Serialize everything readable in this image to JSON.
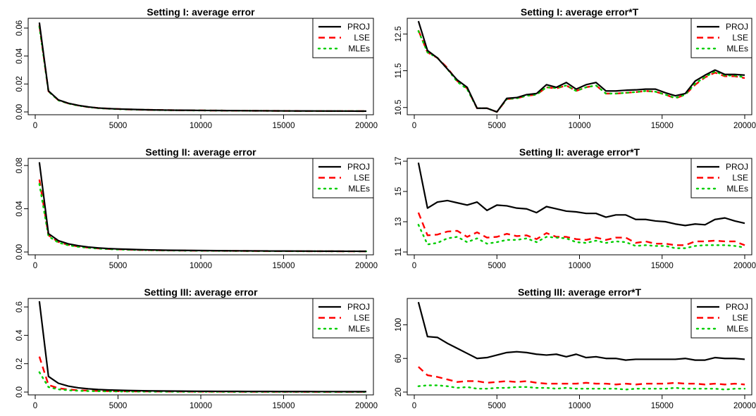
{
  "figure": {
    "background": "#ffffff"
  },
  "legend": {
    "entries": [
      {
        "label": "PROJ",
        "color": "#000000",
        "dash": "solid"
      },
      {
        "label": "LSE",
        "color": "#ff0000",
        "dash": "dashed"
      },
      {
        "label": "MLEs",
        "color": "#00cd00",
        "dash": "dotted"
      }
    ],
    "placement": "top-right"
  },
  "chart_data": [
    {
      "type": "line",
      "title": "Setting I: average error",
      "xlim": [
        0,
        20000
      ],
      "ylim": [
        0,
        0.065
      ],
      "xticks": [
        0,
        5000,
        10000,
        15000,
        20000
      ],
      "yticks": [
        0.0,
        0.02,
        0.04,
        0.06
      ],
      "ytick_labels": [
        "0.00",
        "0.02",
        "0.04",
        "0.06"
      ],
      "x": [
        250,
        800,
        1400,
        2000,
        2600,
        3200,
        3800,
        4400,
        5000,
        5600,
        6200,
        6800,
        7400,
        8000,
        8600,
        9200,
        9800,
        10400,
        11000,
        11600,
        12200,
        12800,
        13400,
        14000,
        14600,
        15200,
        15800,
        16400,
        17000,
        17600,
        18200,
        18800,
        19400,
        20000
      ],
      "series": [
        {
          "name": "PROJ",
          "values": [
            0.064,
            0.015,
            0.0086,
            0.0062,
            0.0047,
            0.0036,
            0.0028,
            0.0024,
            0.0021,
            0.0019,
            0.0017,
            0.0015,
            0.0014,
            0.0013,
            0.0012,
            0.0012,
            0.0011,
            0.00105,
            0.001,
            0.00095,
            0.0009,
            0.00085,
            0.00082,
            0.00078,
            0.00075,
            0.00072,
            0.0007,
            0.00068,
            0.00066,
            0.00064,
            0.00062,
            0.0006,
            0.00058,
            0.00057
          ]
        },
        {
          "name": "LSE",
          "values": [
            0.062,
            0.0148,
            0.0084,
            0.0061,
            0.0046,
            0.0035,
            0.0028,
            0.0024,
            0.0021,
            0.0018,
            0.0016,
            0.0015,
            0.0014,
            0.0013,
            0.0012,
            0.00115,
            0.0011,
            0.001,
            0.00098,
            0.00093,
            0.00088,
            0.00084,
            0.0008,
            0.00077,
            0.00074,
            0.00071,
            0.00069,
            0.00067,
            0.00065,
            0.00063,
            0.00061,
            0.00059,
            0.00057,
            0.00056
          ]
        },
        {
          "name": "MLEs",
          "values": [
            0.061,
            0.0146,
            0.0083,
            0.006,
            0.0045,
            0.0035,
            0.0027,
            0.0023,
            0.002,
            0.0018,
            0.0016,
            0.0015,
            0.0013,
            0.0012,
            0.0012,
            0.0011,
            0.00105,
            0.001,
            0.00096,
            0.00092,
            0.00087,
            0.00083,
            0.0008,
            0.00076,
            0.00073,
            0.0007,
            0.00068,
            0.00066,
            0.00064,
            0.00062,
            0.0006,
            0.00058,
            0.00057,
            0.00055
          ]
        }
      ]
    },
    {
      "type": "line",
      "title": "Setting I: average error*T",
      "xlim": [
        0,
        20000
      ],
      "ylim": [
        10.38,
        12.85
      ],
      "xticks": [
        0,
        5000,
        10000,
        15000,
        20000
      ],
      "yticks": [
        10.5,
        11.5,
        12.5
      ],
      "ytick_labels": [
        "10.5",
        "11.5",
        "12.5"
      ],
      "x": [
        250,
        800,
        1400,
        2000,
        2600,
        3200,
        3800,
        4400,
        5000,
        5600,
        6200,
        6800,
        7400,
        8000,
        8600,
        9200,
        9800,
        10400,
        11000,
        11600,
        12200,
        12800,
        13400,
        14000,
        14600,
        15200,
        15800,
        16400,
        17000,
        17600,
        18200,
        18800,
        19400,
        20000
      ],
      "series": [
        {
          "name": "PROJ",
          "values": [
            12.85,
            12.05,
            11.85,
            11.55,
            11.25,
            11.05,
            10.48,
            10.48,
            10.38,
            10.75,
            10.77,
            10.85,
            10.88,
            11.12,
            11.05,
            11.18,
            11.0,
            11.12,
            11.18,
            10.95,
            10.95,
            10.97,
            10.98,
            11.0,
            11.0,
            10.9,
            10.82,
            10.88,
            11.22,
            11.38,
            11.52,
            11.4,
            11.4,
            11.38
          ]
        },
        {
          "name": "LSE",
          "values": [
            12.6,
            12.0,
            11.85,
            11.58,
            11.22,
            11.02,
            10.48,
            10.48,
            10.38,
            10.73,
            10.75,
            10.82,
            10.85,
            11.05,
            11.02,
            11.1,
            10.95,
            11.05,
            11.1,
            10.88,
            10.88,
            10.9,
            10.92,
            10.95,
            10.93,
            10.85,
            10.75,
            10.85,
            11.12,
            11.32,
            11.45,
            11.35,
            11.35,
            11.3
          ]
        },
        {
          "name": "MLEs",
          "values": [
            12.58,
            12.0,
            11.85,
            11.55,
            11.2,
            11.0,
            10.48,
            10.48,
            10.38,
            10.73,
            10.75,
            10.82,
            10.85,
            11.05,
            11.03,
            11.1,
            10.95,
            11.05,
            11.1,
            10.88,
            10.88,
            10.9,
            10.92,
            10.95,
            10.93,
            10.85,
            10.76,
            10.85,
            11.15,
            11.33,
            11.48,
            11.37,
            11.37,
            11.32
          ]
        }
      ]
    },
    {
      "type": "line",
      "title": "Setting II: average error",
      "xlim": [
        0,
        20000
      ],
      "ylim": [
        0,
        0.084
      ],
      "xticks": [
        0,
        5000,
        10000,
        15000,
        20000
      ],
      "yticks": [
        0.0,
        0.04,
        0.08
      ],
      "ytick_labels": [
        "0.00",
        "0.04",
        "0.08"
      ],
      "x": [
        250,
        800,
        1400,
        2000,
        2600,
        3200,
        3800,
        4400,
        5000,
        5600,
        6200,
        6800,
        7400,
        8000,
        8600,
        9200,
        9800,
        10400,
        11000,
        11600,
        12200,
        12800,
        13400,
        14000,
        14600,
        15200,
        15800,
        16400,
        17000,
        17600,
        18200,
        18800,
        19400,
        20000
      ],
      "series": [
        {
          "name": "PROJ",
          "values": [
            0.083,
            0.017,
            0.0105,
            0.0075,
            0.0058,
            0.0046,
            0.0038,
            0.0032,
            0.0028,
            0.0025,
            0.0022,
            0.002,
            0.0018,
            0.00165,
            0.00155,
            0.00145,
            0.00137,
            0.0013,
            0.00122,
            0.00115,
            0.0011,
            0.00106,
            0.001,
            0.00096,
            0.00092,
            0.00088,
            0.00084,
            0.0008,
            0.00077,
            0.00074,
            0.00072,
            0.0007,
            0.00068,
            0.00066
          ]
        },
        {
          "name": "LSE",
          "values": [
            0.067,
            0.0155,
            0.0093,
            0.0066,
            0.0051,
            0.004,
            0.0033,
            0.0028,
            0.0025,
            0.0022,
            0.0019,
            0.0018,
            0.0016,
            0.0015,
            0.0014,
            0.0013,
            0.0012,
            0.00115,
            0.0011,
            0.00104,
            0.001,
            0.00095,
            0.0009,
            0.00087,
            0.00083,
            0.0008,
            0.00076,
            0.00073,
            0.0007,
            0.00068,
            0.00066,
            0.00064,
            0.00062,
            0.0006
          ]
        },
        {
          "name": "MLEs",
          "values": [
            0.063,
            0.0145,
            0.0087,
            0.0062,
            0.0048,
            0.0038,
            0.0031,
            0.0027,
            0.0023,
            0.0021,
            0.0019,
            0.0017,
            0.0015,
            0.0014,
            0.0013,
            0.0012,
            0.00115,
            0.0011,
            0.00105,
            0.001,
            0.00095,
            0.0009,
            0.00086,
            0.00082,
            0.00079,
            0.00076,
            0.00073,
            0.0007,
            0.00068,
            0.00066,
            0.00064,
            0.00062,
            0.0006,
            0.00058
          ]
        }
      ]
    },
    {
      "type": "line",
      "title": "Setting II: average error*T",
      "xlim": [
        0,
        20000
      ],
      "ylim": [
        11,
        17
      ],
      "xticks": [
        0,
        5000,
        10000,
        15000,
        20000
      ],
      "yticks": [
        11,
        13,
        15,
        17
      ],
      "ytick_labels": [
        "11",
        "13",
        "15",
        "17"
      ],
      "x": [
        250,
        800,
        1400,
        2000,
        2600,
        3200,
        3800,
        4400,
        5000,
        5600,
        6200,
        6800,
        7400,
        8000,
        8600,
        9200,
        9800,
        10400,
        11000,
        11600,
        12200,
        12800,
        13400,
        14000,
        14600,
        15200,
        15800,
        16400,
        17000,
        17600,
        18200,
        18800,
        19400,
        20000
      ],
      "series": [
        {
          "name": "PROJ",
          "values": [
            16.9,
            13.9,
            14.3,
            14.4,
            14.25,
            14.1,
            14.3,
            13.75,
            14.1,
            14.05,
            13.9,
            13.85,
            13.6,
            14.0,
            13.85,
            13.7,
            13.65,
            13.55,
            13.55,
            13.3,
            13.45,
            13.45,
            13.15,
            13.15,
            13.05,
            13.0,
            12.85,
            12.75,
            12.85,
            12.8,
            13.15,
            13.25,
            13.05,
            12.9
          ]
        },
        {
          "name": "LSE",
          "values": [
            13.6,
            12.1,
            12.15,
            12.35,
            12.4,
            12.0,
            12.3,
            11.95,
            12.0,
            12.2,
            12.05,
            12.1,
            11.85,
            12.25,
            12.0,
            12.0,
            11.85,
            11.8,
            11.95,
            11.8,
            11.95,
            11.95,
            11.6,
            11.7,
            11.55,
            11.55,
            11.45,
            11.45,
            11.7,
            11.7,
            11.75,
            11.7,
            11.7,
            11.45
          ]
        },
        {
          "name": "MLEs",
          "values": [
            12.8,
            11.5,
            11.6,
            11.9,
            12.0,
            11.65,
            11.9,
            11.55,
            11.65,
            11.8,
            11.8,
            11.9,
            11.65,
            12.0,
            11.95,
            11.9,
            11.65,
            11.6,
            11.75,
            11.6,
            11.7,
            11.65,
            11.4,
            11.45,
            11.4,
            11.4,
            11.25,
            11.25,
            11.4,
            11.45,
            11.45,
            11.45,
            11.4,
            11.3
          ]
        }
      ]
    },
    {
      "type": "line",
      "title": "Setting III: average error",
      "xlim": [
        0,
        20000
      ],
      "ylim": [
        0,
        0.64
      ],
      "xticks": [
        0,
        5000,
        10000,
        15000,
        20000
      ],
      "yticks": [
        0.0,
        0.2,
        0.4,
        0.6
      ],
      "ytick_labels": [
        "0.0",
        "0.2",
        "0.4",
        "0.6"
      ],
      "x": [
        250,
        800,
        1400,
        2000,
        2600,
        3200,
        3800,
        4400,
        5000,
        5600,
        6200,
        6800,
        7400,
        8000,
        8600,
        9200,
        9800,
        10400,
        11000,
        11600,
        12200,
        12800,
        13400,
        14000,
        14600,
        15200,
        15800,
        16400,
        17000,
        17600,
        18200,
        18800,
        19400,
        20000
      ],
      "series": [
        {
          "name": "PROJ",
          "values": [
            0.64,
            0.11,
            0.062,
            0.042,
            0.03,
            0.023,
            0.018,
            0.015,
            0.013,
            0.011,
            0.0098,
            0.0088,
            0.008,
            0.0073,
            0.0068,
            0.0063,
            0.0059,
            0.0056,
            0.0053,
            0.005,
            0.0048,
            0.0045,
            0.0043,
            0.0042,
            0.004,
            0.0038,
            0.0037,
            0.0036,
            0.0035,
            0.0034,
            0.0033,
            0.0032,
            0.0031,
            0.003
          ]
        },
        {
          "name": "LSE",
          "values": [
            0.25,
            0.05,
            0.027,
            0.018,
            0.013,
            0.01,
            0.008,
            0.0068,
            0.006,
            0.0053,
            0.0048,
            0.0044,
            0.004,
            0.0037,
            0.0034,
            0.0032,
            0.003,
            0.0028,
            0.0027,
            0.0026,
            0.0025,
            0.0024,
            0.0023,
            0.0022,
            0.0021,
            0.002,
            0.002,
            0.0019,
            0.0018,
            0.0018,
            0.0017,
            0.0017,
            0.0016,
            0.0015
          ]
        },
        {
          "name": "MLEs",
          "values": [
            0.14,
            0.035,
            0.019,
            0.013,
            0.009,
            0.0072,
            0.0058,
            0.005,
            0.0044,
            0.0039,
            0.0035,
            0.0032,
            0.003,
            0.0027,
            0.0025,
            0.0024,
            0.0022,
            0.0021,
            0.002,
            0.0019,
            0.0018,
            0.0017,
            0.0017,
            0.0016,
            0.0015,
            0.0015,
            0.0014,
            0.0014,
            0.0013,
            0.0013,
            0.0012,
            0.0012,
            0.0012,
            0.0011
          ]
        }
      ]
    },
    {
      "type": "line",
      "title": "Setting III: average error*T",
      "xlim": [
        0,
        20000
      ],
      "ylim": [
        20,
        128
      ],
      "xticks": [
        0,
        5000,
        10000,
        15000,
        20000
      ],
      "yticks": [
        20,
        60,
        100
      ],
      "ytick_labels": [
        "20",
        "60",
        "100"
      ],
      "x": [
        250,
        800,
        1400,
        2000,
        2600,
        3200,
        3800,
        4400,
        5000,
        5600,
        6200,
        6800,
        7400,
        8000,
        8600,
        9200,
        9800,
        10400,
        11000,
        11600,
        12200,
        12800,
        13400,
        14000,
        14600,
        15200,
        15800,
        16400,
        17000,
        17600,
        18200,
        18800,
        19400,
        20000
      ],
      "series": [
        {
          "name": "PROJ",
          "values": [
            127,
            86,
            85,
            78,
            72,
            66,
            60,
            61,
            64,
            67,
            68,
            67,
            65,
            64,
            65,
            62,
            65,
            61,
            62,
            60,
            60,
            58,
            59,
            59,
            59,
            59,
            59,
            60,
            58,
            58,
            61,
            60,
            60,
            59
          ]
        },
        {
          "name": "LSE",
          "values": [
            50,
            40,
            38,
            35,
            32,
            33,
            33,
            31,
            32,
            33,
            32,
            33,
            31,
            30,
            30,
            30,
            30,
            31,
            30,
            30,
            29,
            30,
            29,
            30,
            30,
            30,
            31,
            30,
            30,
            29,
            30,
            29,
            30,
            29
          ]
        },
        {
          "name": "MLEs",
          "values": [
            27,
            28,
            28,
            27,
            25,
            26,
            24,
            24,
            25,
            25,
            26,
            26,
            25,
            25,
            24,
            25,
            24,
            24,
            24,
            24,
            24,
            23,
            24,
            24,
            24,
            24,
            25,
            24,
            24,
            24,
            24,
            23,
            24,
            24
          ]
        }
      ]
    }
  ]
}
